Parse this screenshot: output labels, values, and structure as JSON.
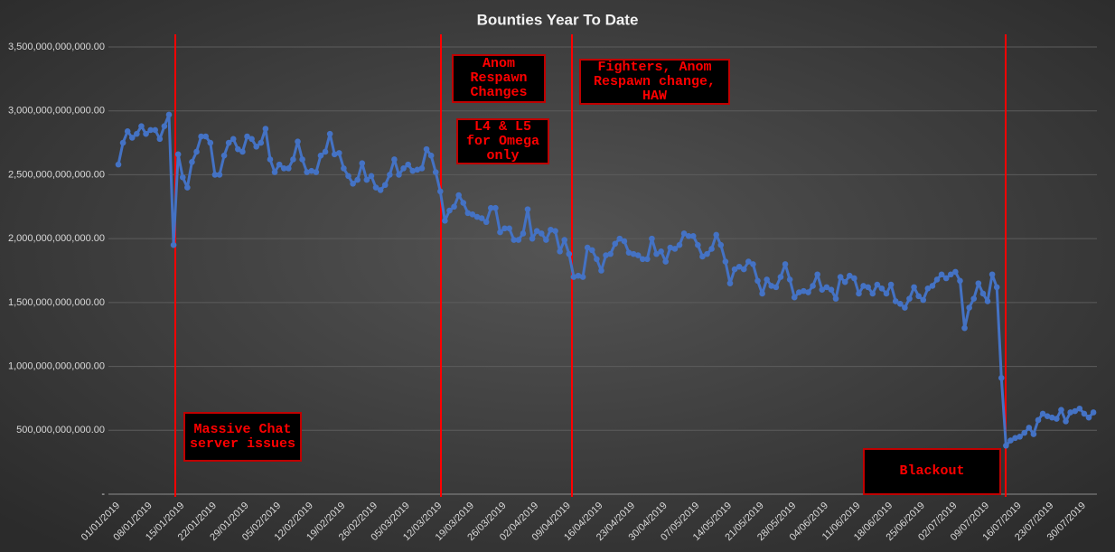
{
  "chart_data": {
    "type": "line",
    "title": "Bounties Year To Date",
    "categories": [
      "01/01/2019",
      null,
      null,
      null,
      null,
      null,
      null,
      "08/01/2019",
      null,
      null,
      null,
      null,
      null,
      null,
      "15/01/2019",
      null,
      null,
      null,
      null,
      null,
      null,
      "22/01/2019",
      null,
      null,
      null,
      null,
      null,
      null,
      "29/01/2019",
      null,
      null,
      null,
      null,
      null,
      null,
      "05/02/2019",
      null,
      null,
      null,
      null,
      null,
      null,
      "12/02/2019",
      null,
      null,
      null,
      null,
      null,
      null,
      "19/02/2019",
      null,
      null,
      null,
      null,
      null,
      null,
      "26/02/2019",
      null,
      null,
      null,
      null,
      null,
      null,
      "05/03/2019",
      null,
      null,
      null,
      null,
      null,
      null,
      "12/03/2019",
      null,
      null,
      null,
      null,
      null,
      null,
      "19/03/2019",
      null,
      null,
      null,
      null,
      null,
      null,
      "26/03/2019",
      null,
      null,
      null,
      null,
      null,
      null,
      "02/04/2019",
      null,
      null,
      null,
      null,
      null,
      null,
      "09/04/2019",
      null,
      null,
      null,
      null,
      null,
      null,
      "16/04/2019",
      null,
      null,
      null,
      null,
      null,
      null,
      "23/04/2019",
      null,
      null,
      null,
      null,
      null,
      null,
      "30/04/2019",
      null,
      null,
      null,
      null,
      null,
      null,
      "07/05/2019",
      null,
      null,
      null,
      null,
      null,
      null,
      "14/05/2019",
      null,
      null,
      null,
      null,
      null,
      null,
      "21/05/2019",
      null,
      null,
      null,
      null,
      null,
      null,
      "28/05/2019",
      null,
      null,
      null,
      null,
      null,
      null,
      "04/06/2019",
      null,
      null,
      null,
      null,
      null,
      null,
      "11/06/2019",
      null,
      null,
      null,
      null,
      null,
      null,
      "18/06/2019",
      null,
      null,
      null,
      null,
      null,
      null,
      "25/06/2019",
      null,
      null,
      null,
      null,
      null,
      null,
      "02/07/2019",
      null,
      null,
      null,
      null,
      null,
      null,
      "09/07/2019",
      null,
      null,
      null,
      null,
      null,
      null,
      "16/07/2019",
      null,
      null,
      null,
      null,
      null,
      null,
      "23/07/2019",
      null,
      null,
      null,
      null,
      null,
      null,
      "30/07/2019",
      null,
      null
    ],
    "values": [
      2580000000000.0,
      2750000000000.0,
      2840000000000.0,
      2790000000000.0,
      2820000000000.0,
      2880000000000.0,
      2820000000000.0,
      2850000000000.0,
      2850000000000.0,
      2780000000000.0,
      2880000000000.0,
      2970000000000.0,
      1950000000000.0,
      2660000000000.0,
      2480000000000.0,
      2400000000000.0,
      2600000000000.0,
      2680000000000.0,
      2800000000000.0,
      2800000000000.0,
      2750000000000.0,
      2500000000000.0,
      2500000000000.0,
      2650000000000.0,
      2750000000000.0,
      2780000000000.0,
      2700000000000.0,
      2680000000000.0,
      2800000000000.0,
      2780000000000.0,
      2720000000000.0,
      2750000000000.0,
      2860000000000.0,
      2620000000000.0,
      2520000000000.0,
      2580000000000.0,
      2550000000000.0,
      2550000000000.0,
      2620000000000.0,
      2760000000000.0,
      2620000000000.0,
      2520000000000.0,
      2530000000000.0,
      2520000000000.0,
      2650000000000.0,
      2680000000000.0,
      2820000000000.0,
      2660000000000.0,
      2670000000000.0,
      2550000000000.0,
      2490000000000.0,
      2430000000000.0,
      2460000000000.0,
      2590000000000.0,
      2460000000000.0,
      2490000000000.0,
      2400000000000.0,
      2380000000000.0,
      2420000000000.0,
      2500000000000.0,
      2620000000000.0,
      2500000000000.0,
      2550000000000.0,
      2580000000000.0,
      2530000000000.0,
      2540000000000.0,
      2550000000000.0,
      2700000000000.0,
      2650000000000.0,
      2520000000000.0,
      2370000000000.0,
      2140000000000.0,
      2220000000000.0,
      2250000000000.0,
      2340000000000.0,
      2280000000000.0,
      2200000000000.0,
      2190000000000.0,
      2170000000000.0,
      2160000000000.0,
      2130000000000.0,
      2240000000000.0,
      2240000000000.0,
      2050000000000.0,
      2080000000000.0,
      2080000000000.0,
      1990000000000.0,
      1990000000000.0,
      2040000000000.0,
      2230000000000.0,
      2000000000000.0,
      2060000000000.0,
      2040000000000.0,
      1990000000000.0,
      2070000000000.0,
      2060000000000.0,
      1900000000000.0,
      1990000000000.0,
      1880000000000.0,
      1700000000000.0,
      1710000000000.0,
      1700000000000.0,
      1930000000000.0,
      1910000000000.0,
      1840000000000.0,
      1750000000000.0,
      1870000000000.0,
      1880000000000.0,
      1960000000000.0,
      2000000000000.0,
      1980000000000.0,
      1890000000000.0,
      1880000000000.0,
      1870000000000.0,
      1840000000000.0,
      1840000000000.0,
      2000000000000.0,
      1880000000000.0,
      1900000000000.0,
      1820000000000.0,
      1930000000000.0,
      1920000000000.0,
      1950000000000.0,
      2040000000000.0,
      2020000000000.0,
      2020000000000.0,
      1950000000000.0,
      1860000000000.0,
      1880000000000.0,
      1920000000000.0,
      2030000000000.0,
      1950000000000.0,
      1820000000000.0,
      1650000000000.0,
      1760000000000.0,
      1780000000000.0,
      1760000000000.0,
      1820000000000.0,
      1800000000000.0,
      1670000000000.0,
      1570000000000.0,
      1680000000000.0,
      1630000000000.0,
      1620000000000.0,
      1700000000000.0,
      1800000000000.0,
      1680000000000.0,
      1540000000000.0,
      1580000000000.0,
      1590000000000.0,
      1580000000000.0,
      1630000000000.0,
      1720000000000.0,
      1600000000000.0,
      1620000000000.0,
      1600000000000.0,
      1530000000000.0,
      1700000000000.0,
      1660000000000.0,
      1710000000000.0,
      1690000000000.0,
      1570000000000.0,
      1630000000000.0,
      1620000000000.0,
      1570000000000.0,
      1640000000000.0,
      1610000000000.0,
      1570000000000.0,
      1640000000000.0,
      1510000000000.0,
      1490000000000.0,
      1460000000000.0,
      1530000000000.0,
      1620000000000.0,
      1550000000000.0,
      1520000000000.0,
      1610000000000.0,
      1630000000000.0,
      1680000000000.0,
      1720000000000.0,
      1690000000000.0,
      1720000000000.0,
      1740000000000.0,
      1670000000000.0,
      1300000000000.0,
      1460000000000.0,
      1530000000000.0,
      1650000000000.0,
      1570000000000.0,
      1510000000000.0,
      1720000000000.0,
      1620000000000.0,
      910000000000.0,
      380000000000.0,
      420000000000.0,
      440000000000.0,
      450000000000.0,
      480000000000.0,
      520000000000.0,
      470000000000.0,
      580000000000.0,
      630000000000.0,
      610000000000.0,
      600000000000.0,
      590000000000.0,
      660000000000.0,
      570000000000.0,
      640000000000.0,
      650000000000.0,
      670000000000.0,
      630000000000.0,
      600000000000.0,
      640000000000.0
    ],
    "color": "#4472c4",
    "ylim": [
      0,
      3500000000000
    ],
    "yticks": [
      {
        "value": 0,
        "label": "-"
      },
      {
        "value": 500000000000,
        "label": "500,000,000,000.00"
      },
      {
        "value": 1000000000000,
        "label": "1,000,000,000,000.00"
      },
      {
        "value": 1500000000000,
        "label": "1,500,000,000,000.00"
      },
      {
        "value": 2000000000000,
        "label": "2,000,000,000,000.00"
      },
      {
        "value": 2500000000000,
        "label": "2,500,000,000,000.00"
      },
      {
        "value": 3000000000000,
        "label": "3,000,000,000,000.00"
      },
      {
        "value": 3500000000000,
        "label": "3,500,000,000,000.00"
      }
    ],
    "grid": true,
    "annotations": [
      "Massive Chat server issues",
      "Anom Respawn Changes",
      "L4 & L5 for Omega only",
      "Fighters, Anom Respawn change, HAW",
      "Blackout"
    ]
  }
}
